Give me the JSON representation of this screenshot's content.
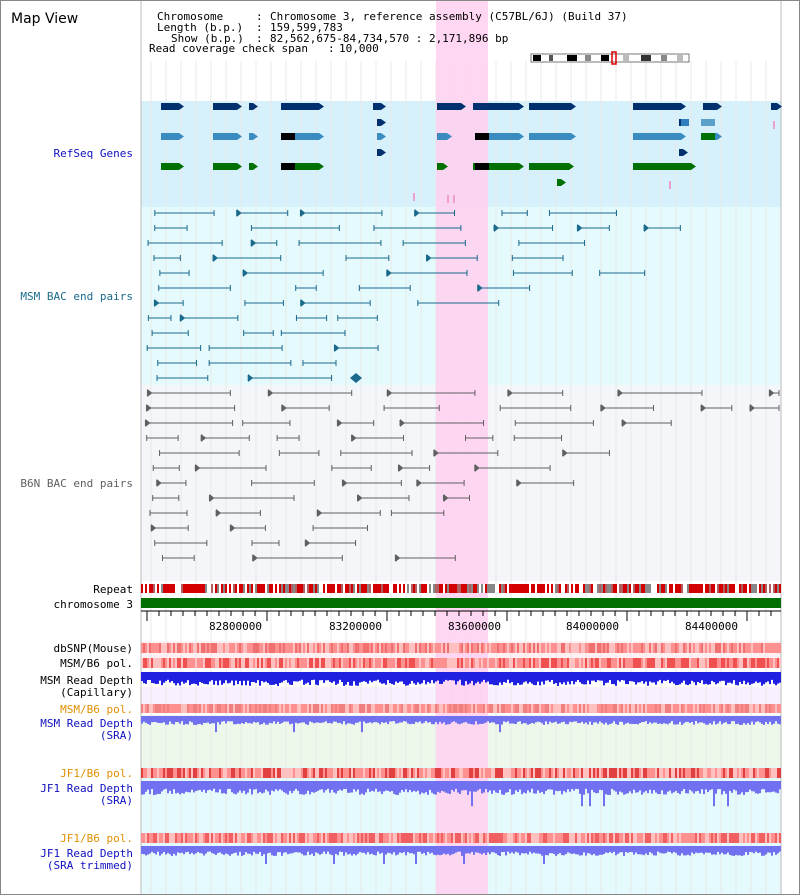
{
  "title": "Map View",
  "header": {
    "chromosome_label": "Chromosome",
    "chromosome_value": "Chromosome 3, reference assembly (C57BL/6J) (Build 37)",
    "length_label": "Length (b.p.)",
    "length_value": "159,599,783",
    "show_label": "Show (b.p.)",
    "show_value": "82,562,675-84,734,570 : 2,171,896 bp",
    "coverage_label": "Read coverage check span",
    "coverage_value": "10,000"
  },
  "tracks": {
    "refseq": "RefSeq Genes",
    "msm_bac": "MSM BAC end pairs",
    "b6n_bac": "B6N BAC end pairs",
    "repeat": "Repeat",
    "chromosome": "chromosome 3",
    "dbsnp": "dbSNP(Mouse)",
    "msm_b6_pol": "MSM/B6 pol.",
    "msm_depth_cap_1": "MSM Read Depth",
    "msm_depth_cap_2": "(Capillary)",
    "msm_b6_pol_sra": "MSM/B6 pol.",
    "msm_depth_sra_1": "MSM Read Depth",
    "msm_depth_sra_2": "(SRA)",
    "jf1_pol_1": "JF1/B6 pol.",
    "jf1_depth_sra_1": "JF1 Read Depth",
    "jf1_depth_sra_2": "(SRA)",
    "jf1_pol_2": "JF1/B6 pol.",
    "jf1_depth_trim_1": "JF1 Read Depth",
    "jf1_depth_trim_2": "(SRA trimmed)"
  },
  "axis": {
    "ticks": [
      "82800000",
      "83200000",
      "83600000",
      "84000000",
      "84400000"
    ]
  },
  "colors": {
    "highlight": "#ffd0f0",
    "refseq_bg": "#d6f0fc",
    "msm_bg": "#e4fafc",
    "b6n_bg": "#f4f6fa",
    "gene_dark": "#00306e",
    "gene_mid": "#3a8cc0",
    "gene_green": "#007000",
    "msm_line": "#1a6a8c",
    "b6n_line": "#606060",
    "chrom_green": "#006e00",
    "depth_blue": "#2020e0",
    "depth_light": "#7070f0",
    "pol_red": "#f06060",
    "label_blue": "#1010c0",
    "label_orange": "#e09000"
  }
}
